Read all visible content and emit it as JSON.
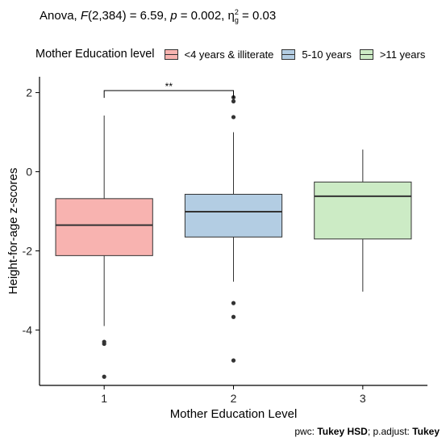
{
  "subtitle": {
    "anova_prefix": "Anova, ",
    "f_label": "F",
    "f_args": "(2,384) = 6.59, ",
    "p_label": "p",
    "p_value": " = 0.002, ",
    "eta_symbol": "η",
    "eta_sub": "g",
    "eta_sup": "2",
    "eta_value": " = 0.03"
  },
  "caption": {
    "pwc_prefix": "pwc: ",
    "pwc_method": "Tukey HSD",
    "adjust_prefix": "; p.adjust: ",
    "adjust_method": "Tukey"
  },
  "chart_data": {
    "type": "box",
    "legend_title": "Mother Education level",
    "legend_position": "top",
    "xlabel": "Mother Education Level",
    "ylabel": "Height-for-age z-scores",
    "ylim": [
      -5.4,
      2.4
    ],
    "yticks": [
      -4,
      -2,
      0,
      2
    ],
    "grid": false,
    "categories": [
      "1",
      "2",
      "3"
    ],
    "groups": [
      {
        "label": "1",
        "legend": "<4 years & illiterate",
        "fill": "#f8b3b0",
        "whisker_low": -3.9,
        "q1": -2.12,
        "median": -1.35,
        "q3": -0.68,
        "whisker_high": 1.42,
        "outliers": [
          -4.3,
          -4.35,
          -5.18
        ]
      },
      {
        "label": "2",
        "legend": "5-10 years",
        "fill": "#b3cde3",
        "whisker_low": -2.78,
        "q1": -1.65,
        "median": -1.01,
        "q3": -0.57,
        "whisker_high": 1.0,
        "outliers": [
          1.88,
          1.78,
          1.38,
          -3.32,
          -3.67,
          -4.77
        ]
      },
      {
        "label": "3",
        "legend": ">11 years",
        "fill": "#ccebc5",
        "whisker_low": -3.03,
        "q1": -1.7,
        "median": -0.62,
        "q3": -0.26,
        "whisker_high": 0.56,
        "outliers": []
      }
    ],
    "significance": [
      {
        "from": "1",
        "to": "2",
        "y": 2.05,
        "label": "**"
      }
    ]
  }
}
